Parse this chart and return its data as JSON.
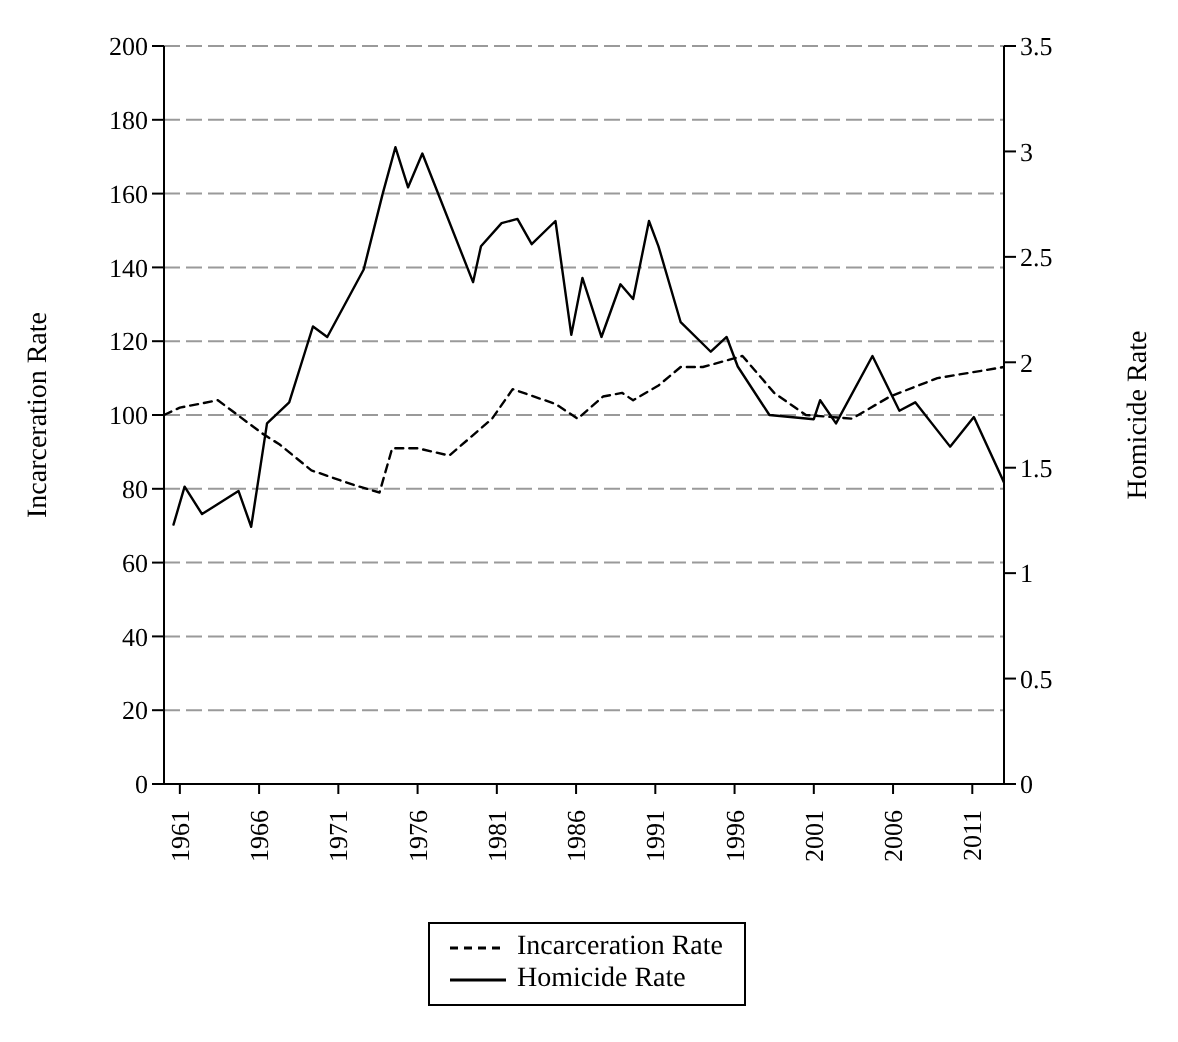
{
  "chart_data": {
    "type": "line",
    "ylabel": "Incarceration Rate",
    "y2label": "Homicide Rate",
    "xlim": [
      1960,
      2013
    ],
    "xticks": [
      1961,
      1966,
      1971,
      1976,
      1981,
      1986,
      1991,
      1996,
      2001,
      2006,
      2011
    ],
    "ylim": [
      0,
      200
    ],
    "yticks": [
      0,
      20,
      40,
      60,
      80,
      100,
      120,
      140,
      160,
      180,
      200
    ],
    "y2lim": [
      0,
      3.5
    ],
    "y2ticks": [
      0,
      0.5,
      1,
      1.5,
      2,
      2.5,
      3,
      3.5
    ],
    "grid": "y",
    "legend": "bottom",
    "marker": "none",
    "series": [
      {
        "name": "Incarceration Rate",
        "color": "#000000",
        "line_style": "dashed",
        "x": [
          1960,
          1961,
          1963.4,
          1966.2,
          1967.3,
          1969.3,
          1972,
          1973.6,
          1974.4,
          1976,
          1978,
          1980.7,
          1982,
          1984.7,
          1986.1,
          1987.7,
          1988.9,
          1989.6,
          1991.2,
          1992.6,
          1994,
          1996.5,
          1998.5,
          2000.5,
          2003.4,
          2005.8,
          2008.8,
          2013
        ],
        "values": [
          100,
          102,
          104,
          95,
          92,
          85,
          81,
          79,
          91,
          91,
          89,
          99,
          107,
          103,
          99,
          105,
          106,
          104,
          108,
          113,
          113,
          116,
          106,
          100,
          99,
          105,
          110,
          113
        ]
      },
      {
        "name": "Homicide Rate",
        "color": "#000000",
        "line_style": "solid",
        "axis": "y2",
        "x": [
          1960.6,
          1961.3,
          1962.4,
          1964.7,
          1965.5,
          1966.5,
          1967.9,
          1968.9,
          1969.4,
          1970.3,
          1972.6,
          1973.8,
          1974.6,
          1975.4,
          1976.3,
          1979.5,
          1980,
          1981.3,
          1982.3,
          1983.2,
          1984.7,
          1985.7,
          1986.4,
          1987.6,
          1988.8,
          1989.6,
          1990.6,
          1991.2,
          1992.6,
          1994.5,
          1995.5,
          1996.2,
          1998.2,
          2001,
          2001.4,
          2002.4,
          2004.7,
          2006.4,
          2007.4,
          2009.6,
          2011.1,
          2013
        ],
        "values": [
          1.23,
          1.41,
          1.28,
          1.39,
          1.22,
          1.71,
          1.81,
          2.05,
          2.17,
          2.12,
          2.44,
          2.8,
          3.02,
          2.83,
          2.99,
          2.38,
          2.55,
          2.66,
          2.68,
          2.56,
          2.67,
          2.13,
          2.4,
          2.12,
          2.37,
          2.3,
          2.67,
          2.55,
          2.19,
          2.05,
          2.12,
          1.98,
          1.75,
          1.73,
          1.82,
          1.71,
          2.03,
          1.77,
          1.81,
          1.6,
          1.74,
          1.43
        ]
      }
    ]
  }
}
